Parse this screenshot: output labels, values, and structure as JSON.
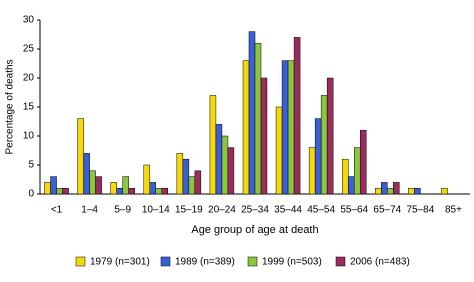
{
  "chart_data": {
    "type": "bar",
    "y_label": "Percentage of deaths",
    "x_label": "Age group of age at death",
    "categories": [
      "<1",
      "1–4",
      "5–9",
      "10–14",
      "15–19",
      "20–24",
      "25–34",
      "35–44",
      "45–54",
      "55–64",
      "65–74",
      "75–84",
      "85+"
    ],
    "series": [
      {
        "name": "1979 (n=301)",
        "color": "#f5d90a",
        "values": [
          2,
          13,
          2,
          5,
          7,
          17,
          23,
          15,
          8,
          6,
          1,
          1,
          1
        ]
      },
      {
        "name": "1989 (n=389)",
        "color": "#3a5fd8",
        "values": [
          3,
          7,
          1,
          2,
          6,
          12,
          28,
          23,
          13,
          3,
          2,
          1,
          0
        ]
      },
      {
        "name": "1999 (n=503)",
        "color": "#8cc63f",
        "values": [
          1,
          4,
          3,
          1,
          3,
          10,
          26,
          23,
          17,
          8,
          1,
          0,
          0
        ]
      },
      {
        "name": "2006 (n=483)",
        "color": "#9b2d5e",
        "values": [
          1,
          3,
          1,
          1,
          4,
          8,
          20,
          27,
          20,
          11,
          2,
          0,
          0
        ]
      }
    ],
    "ylim": [
      0,
      30
    ],
    "yticks": [
      0,
      5,
      10,
      15,
      20,
      25,
      30
    ],
    "grid": false
  }
}
